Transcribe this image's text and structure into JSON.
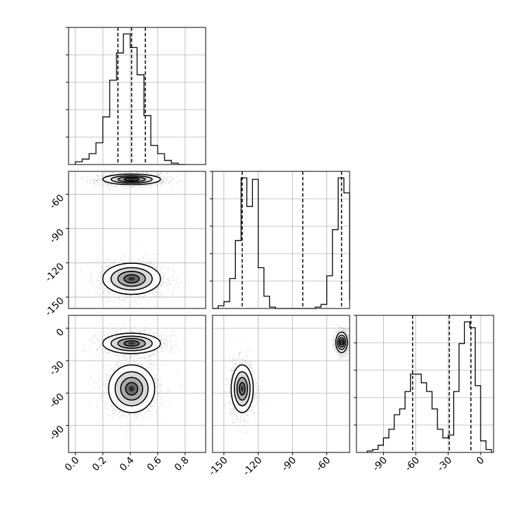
{
  "chart_data": {
    "type": "corner",
    "grid": true,
    "parameters": [
      {
        "key": "p0",
        "range": [
          -0.05,
          0.95
        ],
        "ticks": [
          0.0,
          0.2,
          0.4,
          0.6,
          0.8
        ],
        "tick_labels": [
          "0.0",
          "0.2",
          "0.4",
          "0.6",
          "0.8"
        ],
        "quantiles": [
          0.31,
          0.41,
          0.51
        ],
        "histogram": {
          "bin_edges": [
            0.0,
            0.05,
            0.1,
            0.15,
            0.2,
            0.25,
            0.3,
            0.35,
            0.4,
            0.45,
            0.5,
            0.55,
            0.6,
            0.65,
            0.7,
            0.75,
            0.8
          ],
          "counts": [
            2,
            4,
            8,
            16,
            35,
            62,
            82,
            96,
            86,
            66,
            36,
            14,
            8,
            3,
            1,
            0
          ]
        }
      },
      {
        "key": "p1",
        "range": [
          -160,
          -40
        ],
        "ticks": [
          -150,
          -120,
          -90,
          -60
        ],
        "tick_labels": [
          "-150",
          "-120",
          "-90",
          "-60"
        ],
        "quantiles": [
          -134,
          -81,
          -47
        ],
        "histogram": {
          "bin_edges": [
            -160,
            -155,
            -150,
            -145,
            -140,
            -135,
            -130,
            -125,
            -120,
            -115,
            -110,
            -105,
            -100,
            -95,
            -90,
            -85,
            -80,
            -75,
            -70,
            -65,
            -60,
            -55,
            -50,
            -45,
            -40
          ],
          "counts": [
            0,
            2,
            5,
            22,
            50,
            96,
            75,
            95,
            30,
            9,
            1,
            0,
            0,
            0,
            0,
            0,
            0,
            0,
            1,
            3,
            24,
            58,
            96,
            85,
            6
          ]
        }
      },
      {
        "key": "p2",
        "range": [
          -115,
          12
        ],
        "ticks": [
          -90,
          -60,
          -30,
          0
        ],
        "tick_labels": [
          "-90",
          "-60",
          "-30",
          "0"
        ],
        "quantiles": [
          -63,
          -29,
          -9
        ],
        "histogram": {
          "bin_edges": [
            -105,
            -100,
            -95,
            -90,
            -85,
            -80,
            -75,
            -70,
            -65,
            -60,
            -55,
            -50,
            -45,
            -40,
            -35,
            -30,
            -25,
            -20,
            -15,
            -10,
            -5,
            0,
            5,
            10
          ],
          "counts": [
            1,
            2,
            5,
            10,
            16,
            26,
            30,
            42,
            54,
            54,
            48,
            42,
            30,
            16,
            10,
            12,
            42,
            75,
            90,
            86,
            46,
            8,
            2
          ]
        }
      }
    ],
    "pair_axis_ticks": {
      "y_of_p1": [
        "-60",
        "-90",
        "-120",
        "-150"
      ],
      "y_of_p2": [
        "0",
        "-30",
        "-60",
        "-90"
      ]
    },
    "pairs": [
      {
        "x": "p0",
        "y": "p1",
        "clusters": [
          {
            "center": [
              0.41,
              -47
            ],
            "sd": [
              0.1,
              2.2
            ]
          },
          {
            "center": [
              0.41,
              -134
            ],
            "sd": [
              0.1,
              6.5
            ]
          }
        ]
      },
      {
        "x": "p0",
        "y": "p2",
        "clusters": [
          {
            "center": [
              0.41,
              -14
            ],
            "sd": [
              0.1,
              4.5
            ]
          },
          {
            "center": [
              0.41,
              -56
            ],
            "sd": [
              0.08,
              10.5
            ]
          }
        ]
      },
      {
        "x": "p1",
        "y": "p2",
        "clusters": [
          {
            "center": [
              -47,
              -13
            ],
            "sd": [
              2.4,
              4.5
            ]
          },
          {
            "center": [
              -134,
              -56
            ],
            "sd": [
              4.6,
              10.5
            ]
          }
        ]
      }
    ]
  }
}
